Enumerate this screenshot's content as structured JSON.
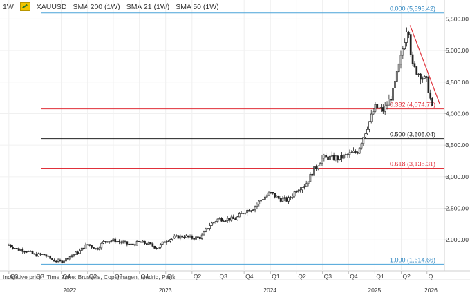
{
  "header": {
    "interval": "1W",
    "symbol": "XAUUSD",
    "indicators": [
      "SMA 200 (1W)",
      "SMA 21 (1W)",
      "SMA 50 (1W)"
    ]
  },
  "footer": {
    "price_note": "Indicative price",
    "timezone_note": "Time Zone: Brussels, Copenhagen, Madrid, Paris"
  },
  "chart_data": {
    "type": "candlestick",
    "x_quarter_labels": [
      "Q2",
      "Q3",
      "Q4",
      "Q2",
      "Q3",
      "Q4",
      "Q1",
      "Q2",
      "Q3",
      "Q4",
      "Q1",
      "Q2",
      "Q3",
      "Q4",
      "Q1",
      "Q2",
      "Q"
    ],
    "x_year_labels": [
      "2022",
      "2023",
      "2024",
      "2025",
      "2026"
    ],
    "y_ticks": [
      2000,
      2500,
      3000,
      3500,
      4000,
      4500,
      5000,
      5500
    ],
    "y_tick_labels": [
      "2,000.00",
      "2,500.00",
      "3,000.00",
      "3,500.00",
      "4,000.00",
      "4,500.00",
      "5,000.00",
      "5,500.00"
    ],
    "ylim": [
      1510,
      5800
    ],
    "price_path": [
      [
        "2022-04-01",
        1920
      ],
      [
        "2022-05-01",
        1850
      ],
      [
        "2022-06-01",
        1830
      ],
      [
        "2022-07-01",
        1760
      ],
      [
        "2022-08-01",
        1770
      ],
      [
        "2022-09-01",
        1680
      ],
      [
        "2022-10-01",
        1650
      ],
      [
        "2022-11-01",
        1740
      ],
      [
        "2022-12-01",
        1810
      ],
      [
        "2023-01-01",
        1930
      ],
      [
        "2023-02-01",
        1850
      ],
      [
        "2023-03-01",
        1980
      ],
      [
        "2023-04-01",
        1990
      ],
      [
        "2023-05-01",
        1960
      ],
      [
        "2023-06-01",
        1920
      ],
      [
        "2023-07-01",
        1960
      ],
      [
        "2023-08-01",
        1940
      ],
      [
        "2023-09-01",
        1870
      ],
      [
        "2023-10-01",
        1990
      ],
      [
        "2023-11-01",
        2040
      ],
      [
        "2023-12-01",
        2060
      ],
      [
        "2024-01-01",
        2030
      ],
      [
        "2024-02-01",
        2040
      ],
      [
        "2024-03-01",
        2230
      ],
      [
        "2024-04-01",
        2330
      ],
      [
        "2024-05-01",
        2330
      ],
      [
        "2024-06-01",
        2330
      ],
      [
        "2024-07-01",
        2450
      ],
      [
        "2024-08-01",
        2500
      ],
      [
        "2024-09-01",
        2650
      ],
      [
        "2024-10-01",
        2740
      ],
      [
        "2024-11-01",
        2650
      ],
      [
        "2024-12-01",
        2630
      ],
      [
        "2025-01-01",
        2800
      ],
      [
        "2025-02-01",
        2880
      ],
      [
        "2025-03-01",
        3100
      ],
      [
        "2025-04-01",
        3300
      ],
      [
        "2025-05-01",
        3300
      ],
      [
        "2025-06-01",
        3300
      ],
      [
        "2025-07-01",
        3350
      ],
      [
        "2025-08-01",
        3400
      ],
      [
        "2025-09-01",
        3750
      ],
      [
        "2025-10-01",
        4100
      ],
      [
        "2025-11-01",
        4050
      ],
      [
        "2025-12-01",
        4300
      ],
      [
        "2026-01-01",
        4900
      ],
      [
        "2026-01-25",
        5450
      ],
      [
        "2026-02-08",
        4750
      ],
      [
        "2026-03-01",
        4650
      ],
      [
        "2026-04-01",
        4500
      ],
      [
        "2026-04-20",
        4080
      ]
    ],
    "fib_levels": [
      {
        "label": "0.000 (5,595.42)",
        "value": 5595.42,
        "color": "#4aa3d8"
      },
      {
        "label": "0.382 (4,074.77)",
        "value": 4074.77,
        "color": "#e0303a"
      },
      {
        "label": "0.500 (3,605.04)",
        "value": 3605.04,
        "color": "#222222"
      },
      {
        "label": "0.618 (3,135.31)",
        "value": 3135.31,
        "color": "#e0303a"
      },
      {
        "label": "1.000 (1,614.66)",
        "value": 1614.66,
        "color": "#4aa3d8"
      }
    ],
    "trendline": {
      "start": [
        "2026-02-01",
        5400
      ],
      "end": [
        "2026-05-15",
        4160
      ],
      "color": "#e0303a"
    },
    "grid": true
  }
}
